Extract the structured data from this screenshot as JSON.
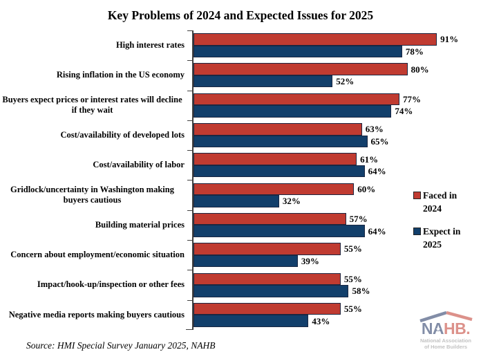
{
  "chart_data": {
    "type": "bar",
    "orientation": "horizontal",
    "title": "Key Problems of 2024 and Expected Issues for 2025",
    "categories": [
      "High interest rates",
      "Rising inflation in the US economy",
      "Buyers expect prices or interest rates will decline if they wait",
      "Cost/availability of developed lots",
      "Cost/availability of labor",
      "Gridlock/uncertainty in Washington making buyers cautious",
      "Building material prices",
      "Concern about employment/economic situation",
      "Impact/hook-up/inspection or other fees",
      "Negative media reports making buyers cautious"
    ],
    "series": [
      {
        "name": "Faced in 2024",
        "color": "#c03b31",
        "values": [
          91,
          80,
          77,
          63,
          61,
          60,
          57,
          55,
          55,
          55
        ]
      },
      {
        "name": "Expect in 2025",
        "color": "#123f6b",
        "values": [
          78,
          52,
          74,
          65,
          64,
          32,
          64,
          39,
          58,
          43
        ]
      }
    ],
    "value_suffix": "%",
    "xlim": [
      0,
      100
    ],
    "grid": false,
    "legend_position": "right"
  },
  "source_note": "Source: HMI Special Survey January 2025, NAHB",
  "logo": {
    "na": "NA",
    "hb": "HB.",
    "star_glyph": "★",
    "line1": "National Association",
    "line2": "of Home Builders"
  }
}
